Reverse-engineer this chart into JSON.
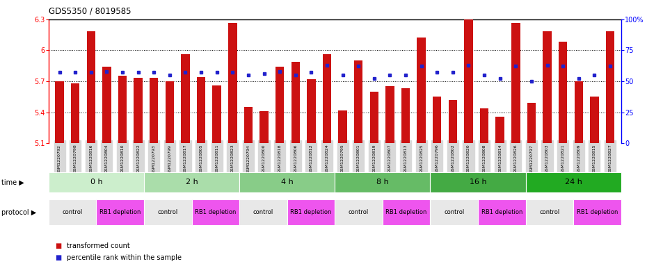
{
  "title": "GDS5350 / 8019585",
  "samples": [
    "GSM1220792",
    "GSM1220798",
    "GSM1220816",
    "GSM1220804",
    "GSM1220810",
    "GSM1220822",
    "GSM1220793",
    "GSM1220799",
    "GSM1220817",
    "GSM1220805",
    "GSM1220811",
    "GSM1220823",
    "GSM1220794",
    "GSM1220800",
    "GSM1220818",
    "GSM1220806",
    "GSM1220812",
    "GSM1220824",
    "GSM1220795",
    "GSM1220801",
    "GSM1220819",
    "GSM1220807",
    "GSM1220813",
    "GSM1220825",
    "GSM1220796",
    "GSM1220802",
    "GSM1220820",
    "GSM1220808",
    "GSM1220814",
    "GSM1220826",
    "GSM1220797",
    "GSM1220803",
    "GSM1220821",
    "GSM1220809",
    "GSM1220815",
    "GSM1220827"
  ],
  "bar_values": [
    5.7,
    5.68,
    6.18,
    5.84,
    5.75,
    5.73,
    5.73,
    5.7,
    5.96,
    5.74,
    5.66,
    6.26,
    5.45,
    5.41,
    5.84,
    5.89,
    5.72,
    5.96,
    5.42,
    5.9,
    5.6,
    5.65,
    5.63,
    6.12,
    5.55,
    5.52,
    6.3,
    5.44,
    5.36,
    6.26,
    5.49,
    6.18,
    6.08,
    5.7,
    5.55,
    6.18
  ],
  "percentile_values": [
    57,
    57,
    57,
    58,
    57,
    57,
    57,
    55,
    57,
    57,
    57,
    57,
    55,
    56,
    58,
    55,
    57,
    63,
    55,
    62,
    52,
    55,
    55,
    62,
    57,
    57,
    63,
    55,
    52,
    62,
    50,
    63,
    62,
    52,
    55,
    62
  ],
  "ylim_left": [
    5.1,
    6.3
  ],
  "ylim_right": [
    0,
    100
  ],
  "bar_color": "#cc1111",
  "dot_color": "#2222cc",
  "yticks_left": [
    5.1,
    5.4,
    5.7,
    6.0,
    6.3
  ],
  "yticks_left_labels": [
    "5.1",
    "5.4",
    "5.7",
    "6",
    "6.3"
  ],
  "grid_lines": [
    5.4,
    5.7,
    6.0
  ],
  "yticks_right": [
    0,
    25,
    50,
    75,
    100
  ],
  "yticks_right_labels": [
    "0",
    "25",
    "50",
    "75",
    "100%"
  ],
  "time_groups": [
    {
      "label": "0 h",
      "start": 0,
      "end": 6,
      "color": "#cceecc"
    },
    {
      "label": "2 h",
      "start": 6,
      "end": 12,
      "color": "#aaddaa"
    },
    {
      "label": "4 h",
      "start": 12,
      "end": 18,
      "color": "#88cc88"
    },
    {
      "label": "8 h",
      "start": 18,
      "end": 24,
      "color": "#66bb66"
    },
    {
      "label": "16 h",
      "start": 24,
      "end": 30,
      "color": "#44aa44"
    },
    {
      "label": "24 h",
      "start": 30,
      "end": 36,
      "color": "#22aa22"
    }
  ],
  "protocol_groups": [
    {
      "label": "control",
      "start": 0,
      "end": 3,
      "color": "#e8e8e8"
    },
    {
      "label": "RB1 depletion",
      "start": 3,
      "end": 6,
      "color": "#ee55ee"
    },
    {
      "label": "control",
      "start": 6,
      "end": 9,
      "color": "#e8e8e8"
    },
    {
      "label": "RB1 depletion",
      "start": 9,
      "end": 12,
      "color": "#ee55ee"
    },
    {
      "label": "control",
      "start": 12,
      "end": 15,
      "color": "#e8e8e8"
    },
    {
      "label": "RB1 depletion",
      "start": 15,
      "end": 18,
      "color": "#ee55ee"
    },
    {
      "label": "control",
      "start": 18,
      "end": 21,
      "color": "#e8e8e8"
    },
    {
      "label": "RB1 depletion",
      "start": 21,
      "end": 24,
      "color": "#ee55ee"
    },
    {
      "label": "control",
      "start": 24,
      "end": 27,
      "color": "#e8e8e8"
    },
    {
      "label": "RB1 depletion",
      "start": 27,
      "end": 30,
      "color": "#ee55ee"
    },
    {
      "label": "control",
      "start": 30,
      "end": 33,
      "color": "#e8e8e8"
    },
    {
      "label": "RB1 depletion",
      "start": 33,
      "end": 36,
      "color": "#ee55ee"
    }
  ],
  "bg_color": "#ffffff",
  "fig_width": 9.3,
  "fig_height": 3.93,
  "dpi": 100
}
